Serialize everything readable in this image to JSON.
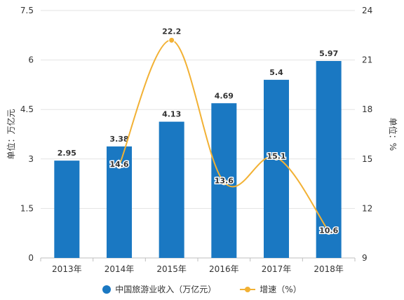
{
  "chart_data": {
    "type": "bar+line",
    "categories": [
      "2013年",
      "2014年",
      "2015年",
      "2016年",
      "2017年",
      "2018年"
    ],
    "series": [
      {
        "name": "中国旅游业收入（万亿元）",
        "type": "bar",
        "axis": "left",
        "values": [
          2.95,
          3.38,
          4.13,
          4.69,
          5.4,
          5.97
        ],
        "labels": [
          "2.95",
          "3.38",
          "4.13",
          "4.69",
          "5.4",
          "5.97"
        ],
        "color": "#1a78c2"
      },
      {
        "name": "增速（%）",
        "type": "line",
        "axis": "right",
        "values": [
          null,
          14.6,
          22.2,
          13.6,
          15.1,
          10.6
        ],
        "labels": [
          "",
          "14.6",
          "22.2",
          "13.6",
          "15.1",
          "10.6"
        ],
        "color": "#f2b134"
      }
    ],
    "left_axis": {
      "label": "单位：万亿元",
      "min": 0,
      "max": 7.5,
      "ticks": [
        "0",
        "1.5",
        "3",
        "4.5",
        "6",
        "7.5"
      ]
    },
    "right_axis": {
      "label": "单位：%",
      "min": 9,
      "max": 24,
      "ticks": [
        "9",
        "12",
        "15",
        "18",
        "21",
        "24"
      ]
    },
    "grid": true,
    "legend": "bottom"
  }
}
